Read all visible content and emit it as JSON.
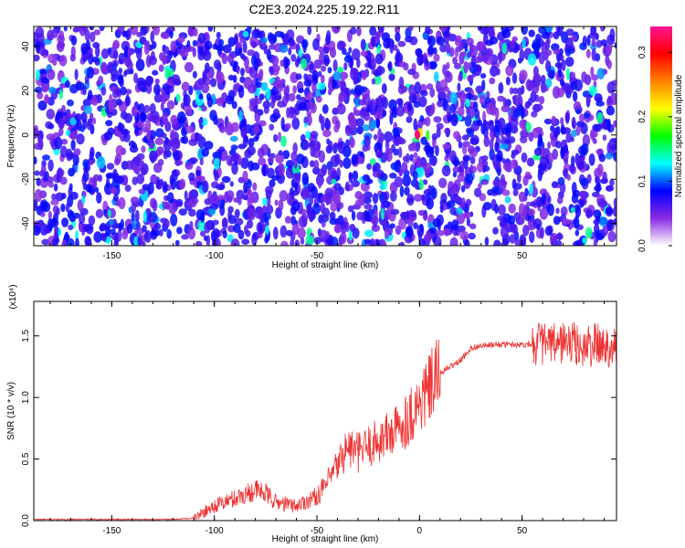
{
  "figure": {
    "title": "C2E3.2024.225.19.22.R11"
  },
  "chart_data": [
    {
      "type": "heatmap",
      "xlabel": "Height of straight line (km)",
      "ylabel": "Frequency (Hz)",
      "xlim": [
        -188,
        96
      ],
      "ylim": [
        -50,
        49
      ],
      "xticks": [
        -150,
        -100,
        -50,
        0,
        50
      ],
      "yticks": [
        -40,
        -20,
        0,
        20,
        40
      ],
      "peak": {
        "x": -1,
        "y": 0,
        "value": 0.33
      },
      "colorbar": {
        "label": "Normalized spectral amplitude",
        "range": [
          0.0,
          0.34
        ],
        "ticks": [
          0.0,
          0.1,
          0.2,
          0.3
        ],
        "colors": [
          "#ffffff",
          "#8a2be2",
          "#0000ff",
          "#00ffff",
          "#00ff00",
          "#ffff00",
          "#ff8000",
          "#ff0000",
          "#ff1493"
        ]
      }
    },
    {
      "type": "line",
      "xlabel": "Height of straight line (km)",
      "ylabel": "SNR (10 * v/v)",
      "multiplier_label": "(x10⁴)",
      "xlim": [
        -188,
        96
      ],
      "ylim": [
        0.0,
        1.78
      ],
      "xticks": [
        -150,
        -100,
        -50,
        0,
        50
      ],
      "yticks": [
        0.0,
        0.5,
        1.0,
        1.5
      ],
      "line_color": "#ee3333",
      "series": [
        {
          "x": [
            -188,
            -150,
            -120,
            -110,
            -100,
            -90,
            -80,
            -75,
            -70,
            -60,
            -50,
            -45,
            -40,
            -35,
            -30,
            -25,
            -20,
            -10,
            0,
            10,
            20,
            25,
            30,
            40,
            50,
            60,
            65,
            70,
            75,
            80,
            85,
            90,
            96
          ],
          "values": [
            0.01,
            0.01,
            0.01,
            0.02,
            0.12,
            0.18,
            0.25,
            0.22,
            0.15,
            0.12,
            0.2,
            0.3,
            0.45,
            0.6,
            0.55,
            0.6,
            0.65,
            0.75,
            0.95,
            1.2,
            1.3,
            1.4,
            1.42,
            1.43,
            1.43,
            1.44,
            1.42,
            1.45,
            1.44,
            1.4,
            1.43,
            1.42,
            1.42
          ]
        }
      ]
    }
  ]
}
